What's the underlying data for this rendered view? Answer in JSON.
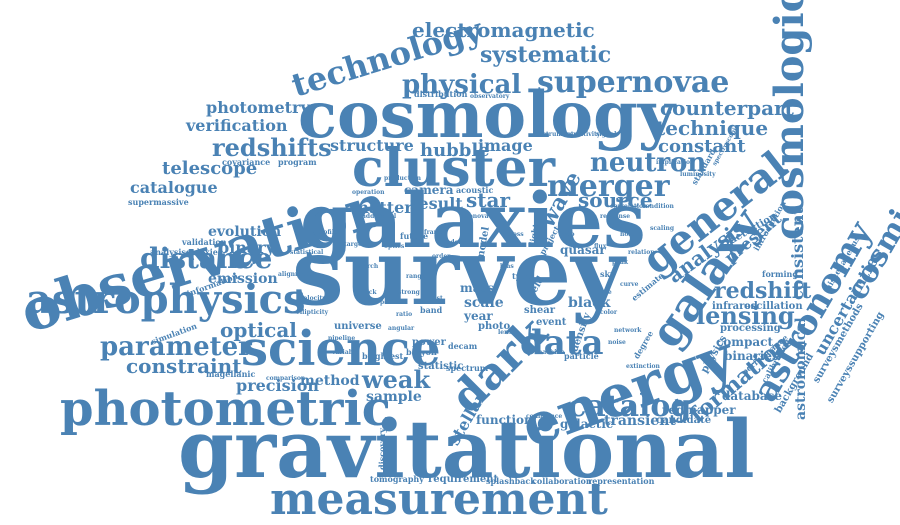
{
  "colors": {
    "word": "#4a82b4",
    "background": "#ffffff"
  },
  "words": {
    "survey": "survey",
    "galaxies": "galaxies",
    "gravitational": "gravitational",
    "cosmology": "cosmology",
    "observation": "observation",
    "cluster": "cluster",
    "energy": "energy",
    "photometric": "photometric",
    "measurement": "measurement",
    "science": "science",
    "astrophysics": "astrophysics",
    "cosmological": "cosmological",
    "general": "general",
    "galaxy": "galaxy",
    "dark": "dark",
    "astronomy": "astronomy",
    "technology": "technology",
    "supernovae": "supernovae",
    "distance": "distance",
    "merger": "merger",
    "neutron": "neutron",
    "data": "data",
    "catalog": "catalog",
    "cosmic": "cosmic",
    "systematic": "systematic",
    "physical": "physical",
    "electromagnetic": "electromagnetic",
    "parameter": "parameter",
    "constraint": "constraint",
    "optical": "optical",
    "weak": "weak",
    "redshifts": "redshifts",
    "lensing": "lensing",
    "redshift": "redshift",
    "formation": "formation",
    "technique": "technique",
    "counterpart": "counterpart",
    "constant": "constant",
    "star": "star",
    "source": "source",
    "wave": "wave",
    "analysis": "analysis",
    "telescope": "telescope",
    "photometry": "photometry",
    "verification": "verification",
    "catalogue": "catalogue",
    "evolution": "evolution",
    "binary": "binary",
    "emission": "emission",
    "precision": "precision",
    "method": "method",
    "sample": "sample",
    "stellar": "stellar",
    "structure": "structure",
    "hubble": "hubble",
    "image": "image",
    "matter": "matter",
    "result": "result",
    "camera": "camera",
    "scale": "scale",
    "mass": "mass",
    "year": "year",
    "function": "function",
    "galactic": "galactic",
    "transient": "transient",
    "redmapper": "redmapper",
    "database": "database",
    "candidate": "candidate",
    "uncertainties": "uncertainties",
    "consistent": "consistent",
    "astronomical": "astronomical",
    "compact": "compact",
    "binaries": "binaries",
    "infrared": "infrared",
    "oscillation": "oscillation",
    "processing": "processing",
    "present": "present",
    "detection": "detection",
    "black": "black",
    "quasar": "quasar",
    "requirement": "requirement",
    "tomography": "tomography",
    "splashback": "splashback",
    "collaboration": "collaboration",
    "representation": "representation",
    "discovery": "discovery",
    "supermassive": "supermassive",
    "validation": "validation",
    "analysisgalaxies": "analysisgalaxies",
    "simulation": "simulation",
    "magellanic": "magellanic",
    "information": "information",
    "covariance": "covariance",
    "program": "program",
    "distribution": "distribution",
    "observatory": "observatory",
    "luminosity": "luminosity",
    "standard": "standard",
    "forming": "forming",
    "miscellaneous": "miscellaneous",
    "surveysmethods": "surveysmethods",
    "surveyssupporting": "surveyssupporting",
    "background": "background",
    "calibration": "calibration",
    "physics": "physics",
    "degree": "degree",
    "performance": "performance",
    "particle": "particle",
    "event": "event",
    "shear": "shear",
    "statistic": "statistic",
    "power": "power",
    "spectrum": "spectrum",
    "universe": "universe",
    "acoustic": "acoustic",
    "photo": "photo",
    "extinction": "extinction",
    "type": "type",
    "brightest": "brightest",
    "machine": "machine",
    "field": "field",
    "model": "model",
    "future": "future",
    "density": "density",
    "project": "project",
    "kilonova": "kilonova",
    "introduction": "introduction",
    "estimate": "estimate",
    "alignment": "alignment",
    "planck": "planck",
    "baryon": "baryon",
    "decam": "decam",
    "angular": "angular",
    "comparison": "comparison",
    "confidence": "confidence",
    "statistical": "statistical",
    "additional": "additional",
    "operation": "operation",
    "production": "production",
    "network": "network",
    "pipeline": "pipeline",
    "band": "band",
    "order": "order",
    "cross": "cross",
    "halo": "halo",
    "flux": "flux",
    "light": "light",
    "peak": "peak",
    "sky": "sky",
    "curve": "curve",
    "rate": "rate",
    "color": "color",
    "noise": "noise",
    "limit": "limit",
    "host": "host",
    "bias": "bias",
    "test": "test",
    "range": "range",
    "spectroscopic": "spectroscopic",
    "implication": "implication",
    "condition": "condition",
    "correlation": "correlation",
    "redshift_small": "redshift",
    "signal": "signal",
    "sensitivity": "sensitivity",
    "instrument": "instrument",
    "response": "response",
    "target": "target",
    "scaling": "scaling",
    "relation": "relation",
    "profile": "profile",
    "velocity": "velocity",
    "ellipticity": "ellipticity",
    "period": "period",
    "ratio": "ratio",
    "frame": "frame",
    "optics": "optics",
    "period2": "search",
    "modeling": "modeling",
    "lens": "lens",
    "strong": "strong",
    "variable": "variable"
  }
}
